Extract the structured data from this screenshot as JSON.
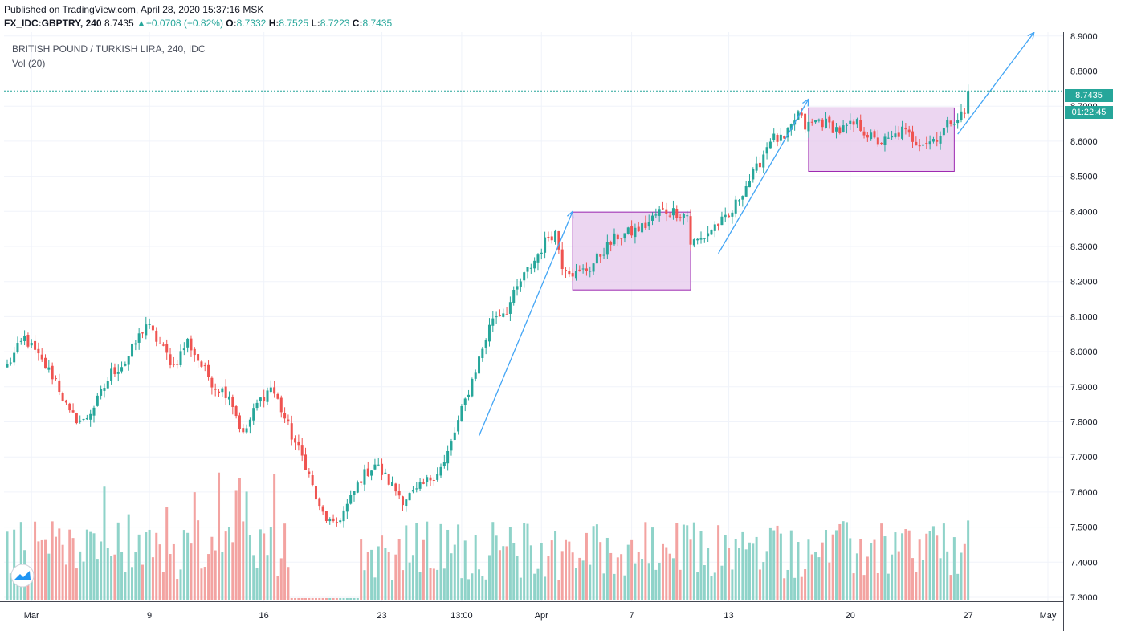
{
  "header": {
    "published": "Published on TradingView.com, April 28, 2020 15:37:16 MSK",
    "symbol": "FX_IDC:GBPTRY, 240",
    "last": "8.7435",
    "change": "+0.0708 (+0.82%)",
    "o_label": "O:",
    "o": "8.7332",
    "h_label": "H:",
    "h": "8.7525",
    "l_label": "L:",
    "l": "8.7223",
    "c_label": "C:",
    "c": "8.7435"
  },
  "legend": {
    "title": "BRITISH POUND / TURKISH LIRA, 240, IDC",
    "volume": "Vol (20)"
  },
  "price_tags": {
    "last": "8.7435",
    "countdown": "01:22:45"
  },
  "colors": {
    "up": "#26a69a",
    "down": "#ef5350",
    "vol_up": "#8fd3c9",
    "vol_down": "#f3a3a1",
    "grid": "#f0f3fa",
    "box_fill": "#e6c8ec",
    "box_stroke": "#9c27b0",
    "arrow": "#42a5f5"
  },
  "chart_data": {
    "type": "candlestick",
    "y_ticks": [
      "8.9000",
      "8.8000",
      "8.7000",
      "8.6000",
      "8.5000",
      "8.4000",
      "8.3000",
      "8.2000",
      "8.1000",
      "8.0000",
      "7.9000",
      "7.8000",
      "7.7000",
      "7.6000",
      "7.5000",
      "7.4000",
      "7.3000"
    ],
    "ylim": [
      7.28,
      8.92
    ],
    "x_ticks": [
      "Mar",
      "9",
      "16",
      "23",
      "13:00",
      "Apr",
      "7",
      "13",
      "20",
      "27",
      "May"
    ],
    "last_price": 8.7435,
    "anchors": [
      [
        0,
        7.96
      ],
      [
        5,
        8.04
      ],
      [
        10,
        7.97
      ],
      [
        14,
        7.92
      ],
      [
        18,
        7.82
      ],
      [
        22,
        7.8
      ],
      [
        26,
        7.86
      ],
      [
        30,
        7.94
      ],
      [
        34,
        7.97
      ],
      [
        40,
        8.08
      ],
      [
        44,
        8.02
      ],
      [
        48,
        7.96
      ],
      [
        52,
        8.03
      ],
      [
        56,
        7.96
      ],
      [
        60,
        7.9
      ],
      [
        64,
        7.88
      ],
      [
        68,
        7.76
      ],
      [
        72,
        7.85
      ],
      [
        76,
        7.9
      ],
      [
        78,
        7.86
      ],
      [
        82,
        7.76
      ],
      [
        86,
        7.68
      ],
      [
        90,
        7.55
      ],
      [
        94,
        7.5
      ],
      [
        98,
        7.56
      ],
      [
        102,
        7.64
      ],
      [
        106,
        7.68
      ],
      [
        110,
        7.63
      ],
      [
        114,
        7.58
      ],
      [
        118,
        7.6
      ],
      [
        122,
        7.64
      ],
      [
        126,
        7.68
      ],
      [
        128,
        7.74
      ],
      [
        132,
        7.86
      ],
      [
        136,
        7.98
      ],
      [
        140,
        8.1
      ],
      [
        144,
        8.12
      ],
      [
        148,
        8.2
      ],
      [
        152,
        8.26
      ],
      [
        156,
        8.33
      ],
      [
        158,
        8.34
      ],
      [
        160,
        8.25
      ],
      [
        164,
        8.22
      ],
      [
        168,
        8.24
      ],
      [
        172,
        8.29
      ],
      [
        176,
        8.33
      ],
      [
        180,
        8.34
      ],
      [
        184,
        8.36
      ],
      [
        188,
        8.4
      ],
      [
        192,
        8.4
      ],
      [
        196,
        8.39
      ],
      [
        197,
        8.31
      ],
      [
        200,
        8.32
      ],
      [
        204,
        8.36
      ],
      [
        208,
        8.38
      ],
      [
        212,
        8.46
      ],
      [
        216,
        8.52
      ],
      [
        220,
        8.61
      ],
      [
        224,
        8.6
      ],
      [
        228,
        8.68
      ],
      [
        230,
        8.64
      ],
      [
        234,
        8.66
      ],
      [
        240,
        8.63
      ],
      [
        245,
        8.65
      ],
      [
        250,
        8.6
      ],
      [
        254,
        8.6
      ],
      [
        258,
        8.63
      ],
      [
        262,
        8.6
      ],
      [
        266,
        8.6
      ],
      [
        269,
        8.62
      ],
      [
        272,
        8.66
      ],
      [
        276,
        8.68
      ],
      [
        277,
        8.74
      ]
    ],
    "bar_count": 278,
    "x_tick_bars": [
      7,
      41,
      74,
      108,
      131,
      154,
      180,
      208,
      243,
      277,
      300
    ],
    "volume": {
      "range": [
        0,
        1
      ]
    },
    "boxes": [
      {
        "from_bar": 163,
        "to_bar": 197,
        "top": 8.398,
        "bottom": 8.176
      },
      {
        "from_bar": 231,
        "to_bar": 273,
        "top": 8.695,
        "bottom": 8.514
      }
    ],
    "arrows": [
      {
        "from": [
          136,
          7.76
        ],
        "to": [
          163,
          8.4
        ]
      },
      {
        "from": [
          205,
          8.28
        ],
        "to": [
          231,
          8.72
        ]
      },
      {
        "from": [
          274,
          8.62
        ],
        "to": [
          296,
          8.91
        ]
      }
    ]
  }
}
